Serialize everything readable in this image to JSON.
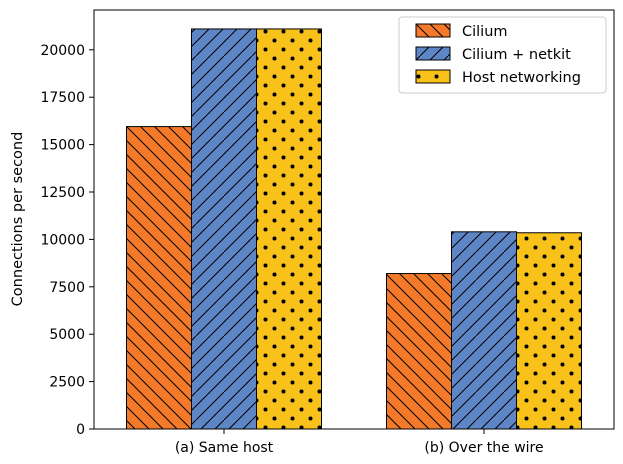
{
  "chart_data": {
    "type": "bar",
    "title": "",
    "xlabel": "",
    "ylabel": "Connections per second",
    "categories": [
      "(a) Same host",
      "(b) Over the wire"
    ],
    "series": [
      {
        "name": "Cilium",
        "values": [
          15950,
          8200
        ],
        "color": "#f47a2a",
        "pattern": "backslash-hatch"
      },
      {
        "name": "Cilium + netkit",
        "values": [
          21100,
          10400
        ],
        "color": "#5e85c6",
        "pattern": "slash-hatch"
      },
      {
        "name": "Host networking",
        "values": [
          21100,
          10350
        ],
        "color": "#f8c21a",
        "pattern": "dots"
      }
    ],
    "ylim": [
      0,
      22100
    ],
    "yticks": [
      0,
      2500,
      5000,
      7500,
      10000,
      12500,
      15000,
      17500,
      20000
    ],
    "ytick_labels": [
      "0",
      "2500",
      "5000",
      "7500",
      "10000",
      "12500",
      "15000",
      "17500",
      "20000"
    ],
    "grid": false,
    "legend_position": "top-right"
  }
}
